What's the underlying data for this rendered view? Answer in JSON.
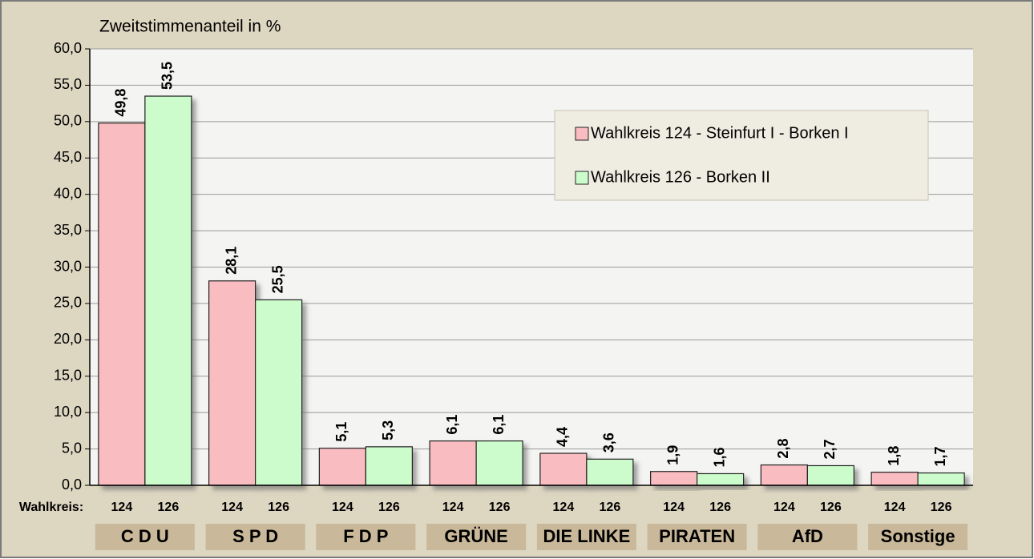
{
  "chart_data": {
    "type": "bar",
    "title": "Zweitstimmenanteil in %",
    "x_label": "Wahlkreis:",
    "categories": [
      "C D U",
      "S P D",
      "F D P",
      "GRÜNE",
      "DIE LINKE",
      "PIRATEN",
      "AfD",
      "Sonstige"
    ],
    "series": [
      {
        "name": "Wahlkreis 124 - Steinfurt I - Borken I",
        "short": "124",
        "color": "#f9bcc0",
        "values": [
          49.8,
          28.1,
          5.1,
          6.1,
          4.4,
          1.9,
          2.8,
          1.8
        ],
        "value_labels": [
          "49,8",
          "28,1",
          "5,1",
          "6,1",
          "4,4",
          "1,9",
          "2,8",
          "1,8"
        ]
      },
      {
        "name": "Wahlkreis 126 - Borken II",
        "short": "126",
        "color": "#ccfccc",
        "values": [
          53.5,
          25.5,
          5.3,
          6.1,
          3.6,
          1.6,
          2.7,
          1.7
        ],
        "value_labels": [
          "53,5",
          "25,5",
          "5,3",
          "6,1",
          "3,6",
          "1,6",
          "2,7",
          "1,7"
        ]
      }
    ],
    "ylim": [
      0,
      60
    ],
    "yticks": [
      {
        "value": 0,
        "label": "0,0"
      },
      {
        "value": 5,
        "label": "5,0"
      },
      {
        "value": 10,
        "label": "10,0"
      },
      {
        "value": 15,
        "label": "15,0"
      },
      {
        "value": 20,
        "label": "20,0"
      },
      {
        "value": 25,
        "label": "25,0"
      },
      {
        "value": 30,
        "label": "30,0"
      },
      {
        "value": 35,
        "label": "35,0"
      },
      {
        "value": 40,
        "label": "40,0"
      },
      {
        "value": 45,
        "label": "45,0"
      },
      {
        "value": 50,
        "label": "50,0"
      },
      {
        "value": 55,
        "label": "55,0"
      },
      {
        "value": 60,
        "label": "60,0"
      }
    ],
    "grid": true,
    "legend": "upper right"
  }
}
